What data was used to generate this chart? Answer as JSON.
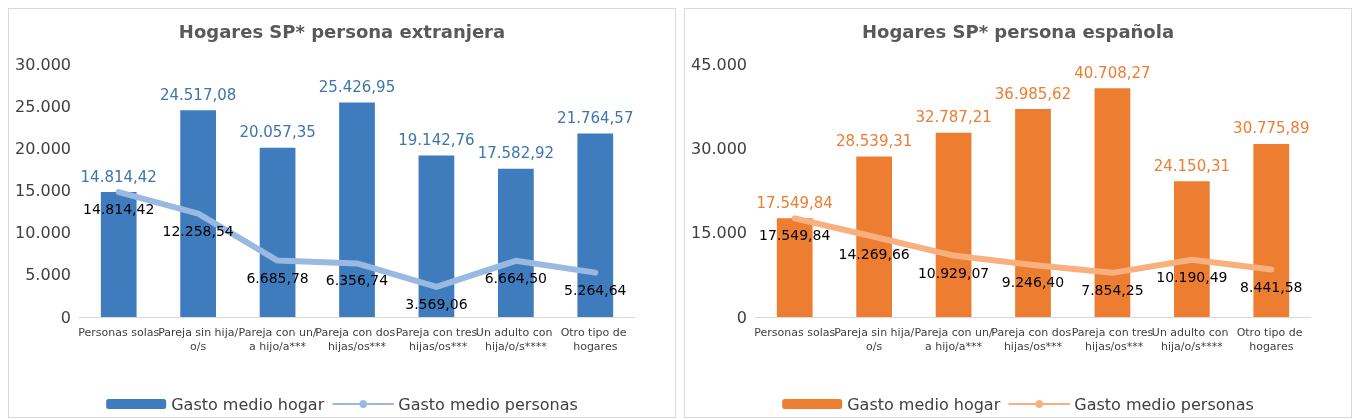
{
  "chart_data": [
    {
      "type": "bar",
      "title": "Hogares SP* persona extranjera",
      "categories": [
        "Personas solas",
        "Pareja sin hija/o/s",
        "Pareja con un/a hijo/a***",
        "Pareja con dos hijas/os***",
        "Pareja con tres hijas/os***",
        "Un adulto con hija/o/s****",
        "Otro tipo de hogares"
      ],
      "series": [
        {
          "name": "Gasto medio hogar",
          "color": "#3f7cbd",
          "values": [
            14814.42,
            24517.08,
            20057.35,
            25426.95,
            19142.76,
            17582.92,
            21764.57
          ],
          "value_labels": [
            "14.814,42",
            "24.517,08",
            "20.057,35",
            "25.426,95",
            "19.142,76",
            "17.582,92",
            "21.764,57"
          ]
        },
        {
          "name": "Gasto medio personas",
          "type": "line",
          "color": "#9ab9e1",
          "values": [
            14814.42,
            12258.54,
            6685.78,
            6356.74,
            3569.06,
            6664.5,
            5264.64
          ],
          "value_labels": [
            "14.814,42",
            "12.258,54",
            "6.685,78",
            "6.356,74",
            "3.569,06",
            "6.664,50",
            "5.264,64"
          ]
        }
      ],
      "ylim": [
        0,
        30000
      ],
      "yticks": [
        {
          "value": 0,
          "label": "0"
        },
        {
          "value": 5000,
          "label": "5.000"
        },
        {
          "value": 10000,
          "label": "10.000"
        },
        {
          "value": 15000,
          "label": "15.000"
        },
        {
          "value": 20000,
          "label": "20.000"
        },
        {
          "value": 25000,
          "label": "25.000"
        },
        {
          "value": 30000,
          "label": "30.000"
        }
      ],
      "grid": false,
      "legend": "bottom",
      "marker": "none",
      "line_style": "solid"
    },
    {
      "type": "bar",
      "title": "Hogares SP* persona española",
      "categories": [
        "Personas solas",
        "Pareja sin hija/o/s",
        "Pareja con un/a hijo/a***",
        "Pareja con dos hijas/os***",
        "Pareja con tres hijas/os***",
        "Un adulto con hija/o/s****",
        "Otro tipo de hogares"
      ],
      "series": [
        {
          "name": "Gasto medio hogar",
          "color": "#ed7d31",
          "values": [
            17549.84,
            28539.31,
            32787.21,
            36985.62,
            40708.27,
            24150.31,
            30775.89
          ],
          "value_labels": [
            "17.549,84",
            "28.539,31",
            "32.787,21",
            "36.985,62",
            "40.708,27",
            "24.150,31",
            "30.775,89"
          ]
        },
        {
          "name": "Gasto medio personas",
          "type": "line",
          "color": "#f8b07f",
          "values": [
            17549.84,
            14269.66,
            10929.07,
            9246.4,
            7854.25,
            10190.49,
            8441.58
          ],
          "value_labels": [
            "17.549,84",
            "14.269,66",
            "10.929,07",
            "9.246,40",
            "7.854,25",
            "10.190,49",
            "8.441,58"
          ]
        }
      ],
      "ylim": [
        0,
        45000
      ],
      "yticks": [
        {
          "value": 0,
          "label": "0"
        },
        {
          "value": 15000,
          "label": "15.000"
        },
        {
          "value": 30000,
          "label": "30.000"
        },
        {
          "value": 45000,
          "label": "45.000"
        }
      ],
      "grid": false,
      "legend": "bottom",
      "marker": "none",
      "line_style": "solid"
    }
  ]
}
